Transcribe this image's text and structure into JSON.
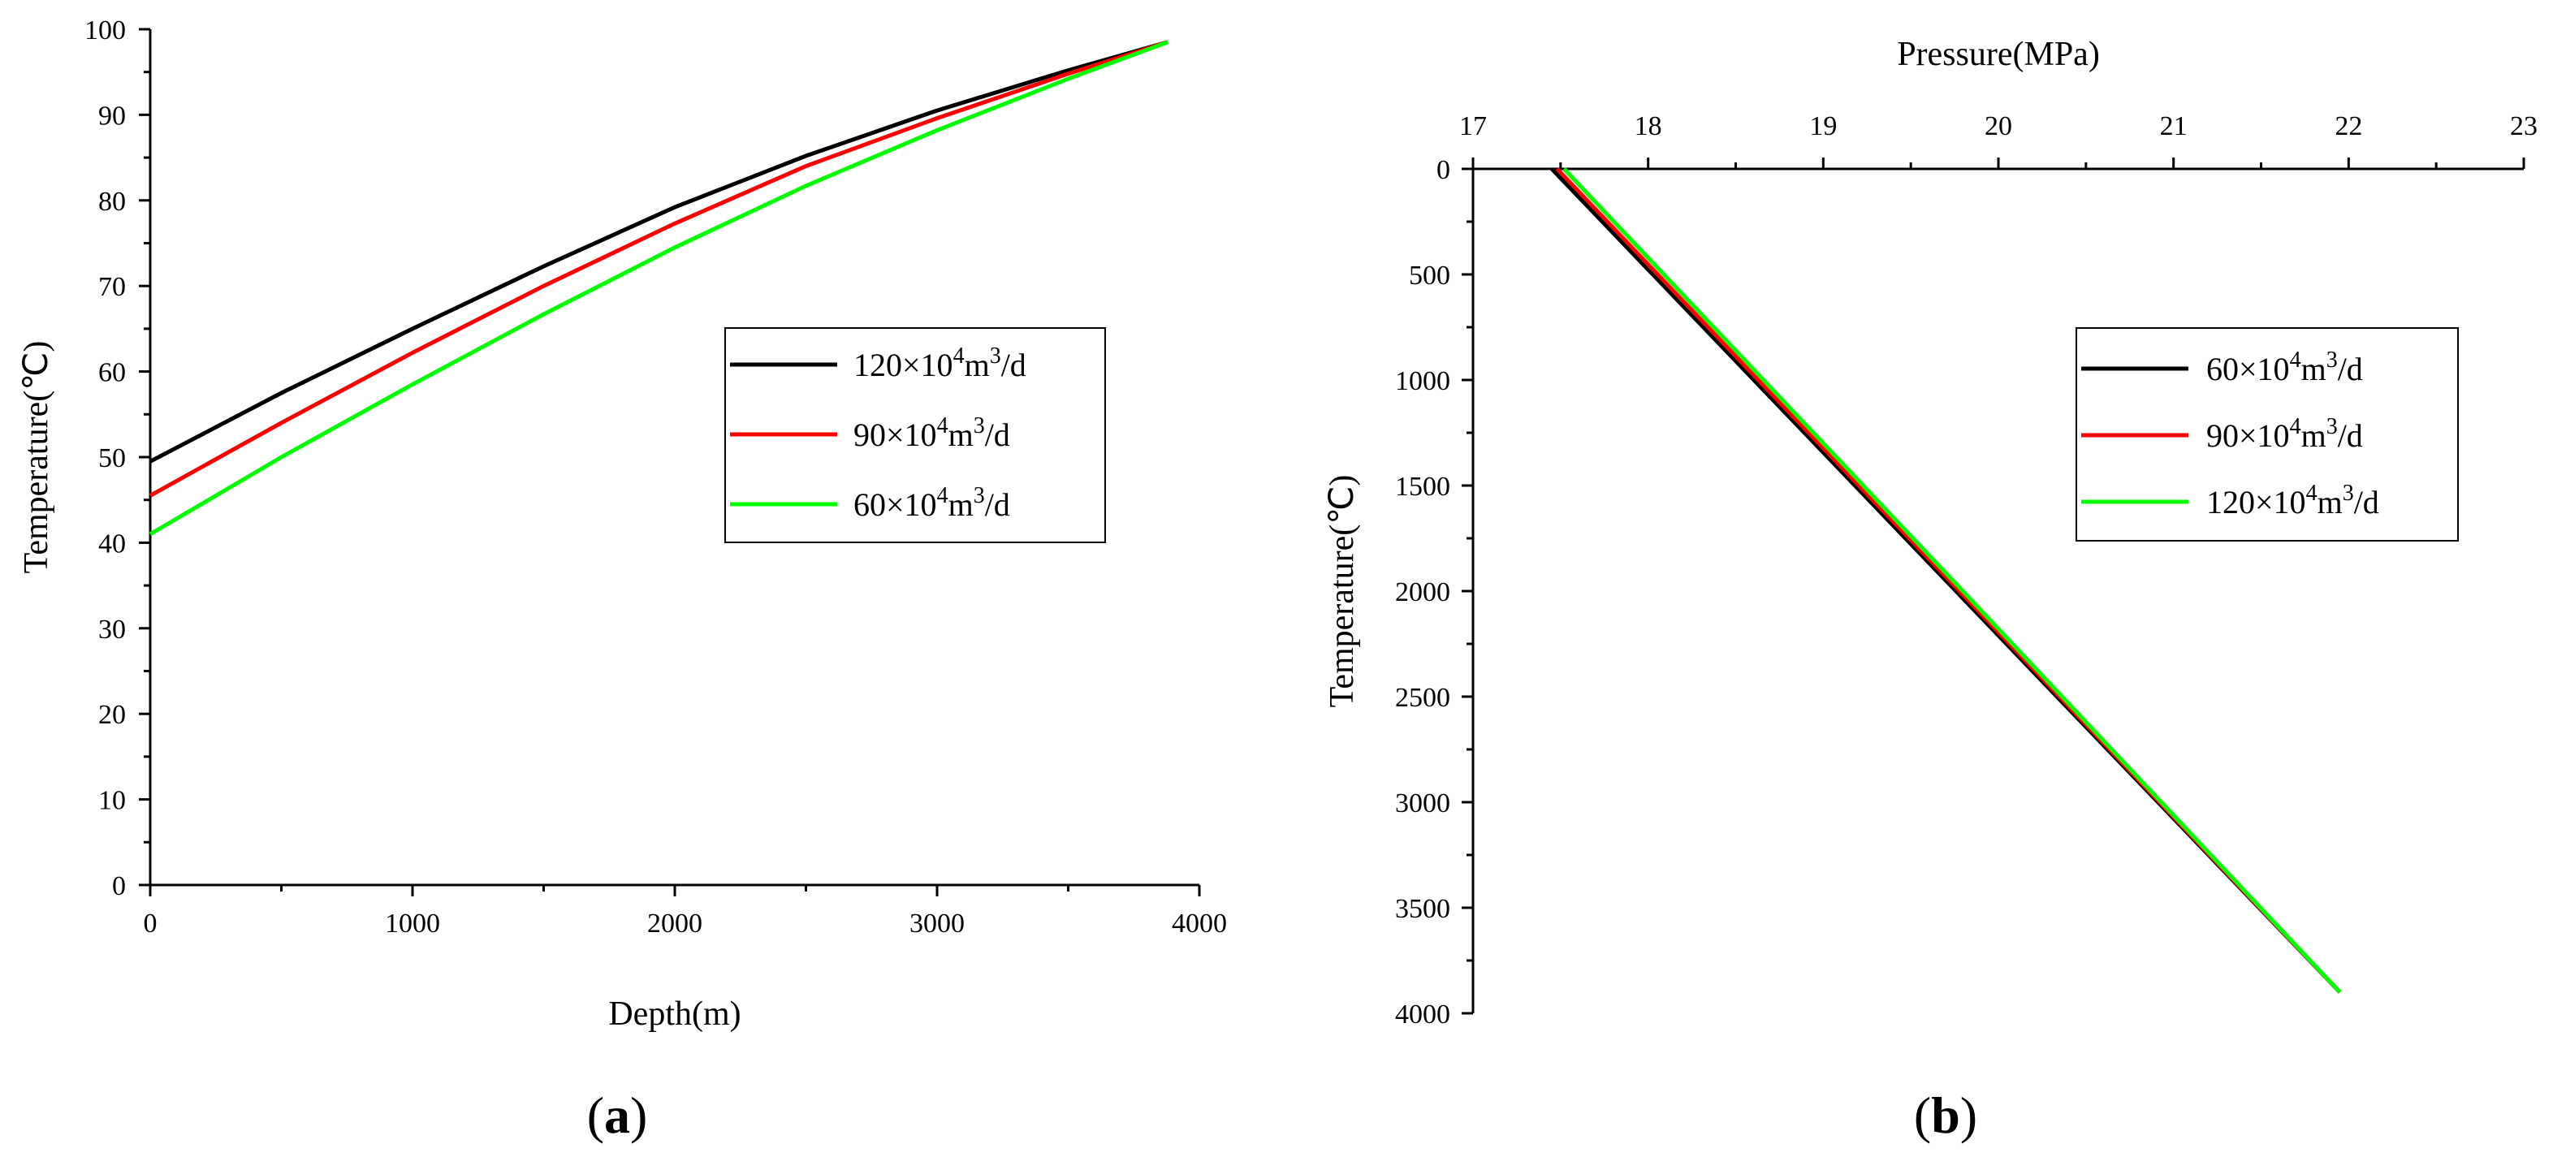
{
  "panel_a_label": "a",
  "panel_b_label": "b",
  "chart_data": [
    {
      "type": "line",
      "panel": "a",
      "xlabel": "Depth(m)",
      "ylabel": "Temperature(℃)",
      "xlim": [
        0,
        4000
      ],
      "ylim": [
        0,
        100
      ],
      "xticks": [
        0,
        1000,
        2000,
        3000,
        4000
      ],
      "yticks": [
        0,
        10,
        20,
        30,
        40,
        50,
        60,
        70,
        80,
        90,
        100
      ],
      "legend_position": "center-right",
      "series": [
        {
          "name": "120×10^4m^3/d",
          "legend_base": "120×10",
          "legend_exp1": "4",
          "legend_mid": "m",
          "legend_exp2": "3",
          "legend_tail": "/d",
          "color": "#000000",
          "x": [
            0,
            500,
            1000,
            1500,
            2000,
            2500,
            3000,
            3500,
            3880
          ],
          "y": [
            49.5,
            57.5,
            65,
            72.3,
            79.2,
            85.2,
            90.5,
            95.2,
            98.5
          ]
        },
        {
          "name": "90×10^4m^3/d",
          "legend_base": "90×10",
          "legend_exp1": "4",
          "legend_mid": "m",
          "legend_exp2": "3",
          "legend_tail": "/d",
          "color": "#ff0000",
          "x": [
            0,
            500,
            1000,
            1500,
            2000,
            2500,
            3000,
            3500,
            3880
          ],
          "y": [
            45.5,
            54,
            62.2,
            70,
            77.3,
            84,
            89.6,
            94.8,
            98.5
          ]
        },
        {
          "name": "60×10^4m^3/d",
          "legend_base": "60×10",
          "legend_exp1": "4",
          "legend_mid": "m",
          "legend_exp2": "3",
          "legend_tail": "/d",
          "color": "#00ff00",
          "x": [
            0,
            500,
            1000,
            1500,
            2000,
            2500,
            3000,
            3500,
            3880
          ],
          "y": [
            41,
            50,
            58.5,
            66.7,
            74.5,
            81.7,
            88.2,
            94.2,
            98.5
          ]
        }
      ]
    },
    {
      "type": "line",
      "panel": "b",
      "xlabel": "Pressure(MPa)",
      "ylabel": "Temperature(℃)",
      "xlim": [
        17,
        23
      ],
      "ylim": [
        0,
        4000
      ],
      "y_inverted": true,
      "x_axis_position": "top",
      "xticks": [
        17,
        18,
        19,
        20,
        21,
        22,
        23
      ],
      "yticks": [
        0,
        500,
        1000,
        1500,
        2000,
        2500,
        3000,
        3500,
        4000
      ],
      "legend_position": "center-right",
      "series": [
        {
          "name": "60×10^4m^3/d",
          "legend_base": "60×10",
          "legend_exp1": "4",
          "legend_mid": "m",
          "legend_exp2": "3",
          "legend_tail": "/d",
          "color": "#000000",
          "x": [
            17.45,
            19.7,
            21.95
          ],
          "y": [
            0,
            1950,
            3900
          ]
        },
        {
          "name": "90×10^4m^3/d",
          "legend_base": "90×10",
          "legend_exp1": "4",
          "legend_mid": "m",
          "legend_exp2": "3",
          "legend_tail": "/d",
          "color": "#ff0000",
          "x": [
            17.48,
            19.72,
            21.95
          ],
          "y": [
            0,
            1950,
            3900
          ]
        },
        {
          "name": "120×10^4m^3/d",
          "legend_base": "120×10",
          "legend_exp1": "4",
          "legend_mid": "m",
          "legend_exp2": "3",
          "legend_tail": "/d",
          "color": "#00ff00",
          "x": [
            17.52,
            19.74,
            21.95
          ],
          "y": [
            0,
            1950,
            3900
          ]
        }
      ]
    }
  ]
}
